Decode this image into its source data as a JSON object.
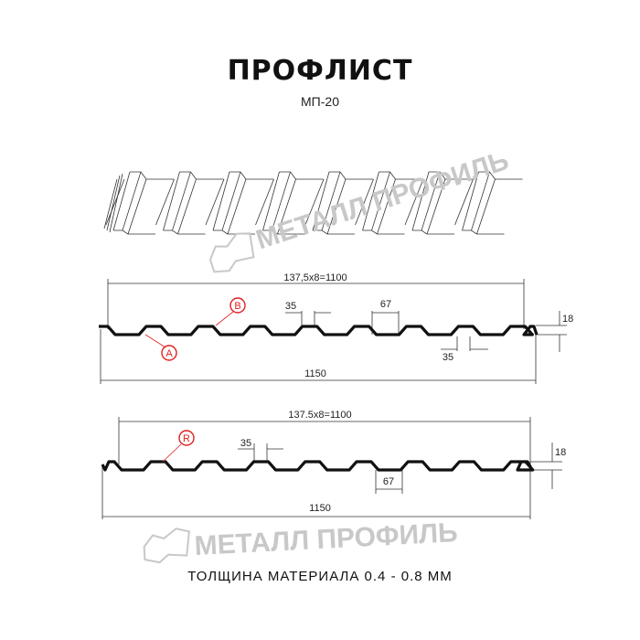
{
  "header": {
    "title": "ПРОФЛИСТ",
    "model": "МП-20"
  },
  "watermark": {
    "text": "МЕТАЛЛ ПРОФИЛЬ"
  },
  "profile_1": {
    "pitch_label": "137,5x8=1100",
    "total_label": "1150",
    "rib_top_label": "35",
    "rib_gap_label": "67",
    "bottom_label": "35",
    "height_label": "18",
    "callout_a": "A",
    "callout_b": "B"
  },
  "profile_2": {
    "pitch_label": "137.5x8=1100",
    "total_label": "1150",
    "rib_top_label": "35",
    "rib_gap_label": "67",
    "height_label": "18",
    "callout_r": "R"
  },
  "footer": {
    "thickness": "ТОЛЩИНА МАТЕРИАЛА 0.4 - 0.8 ММ"
  },
  "colors": {
    "line": "#111111",
    "dim": "#333333",
    "callout": "#e02020",
    "watermark": "#c8c8c8"
  }
}
